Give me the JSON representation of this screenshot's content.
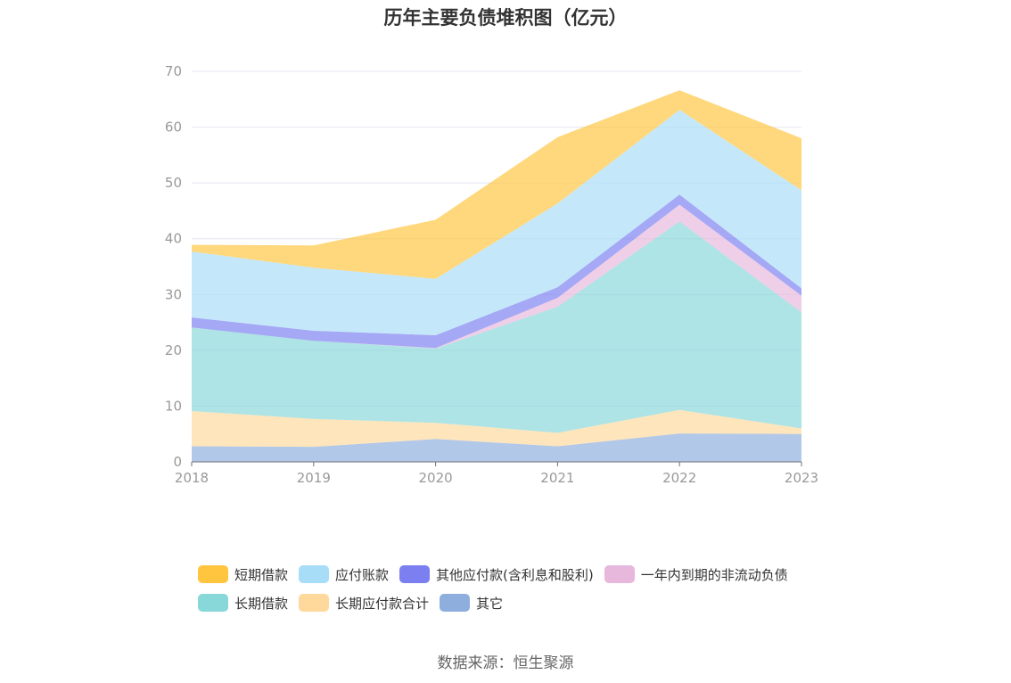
{
  "chart_data": {
    "type": "area",
    "stacked": true,
    "title": "历年主要负债堆积图（亿元）",
    "categories": [
      "2018",
      "2019",
      "2020",
      "2021",
      "2022",
      "2023"
    ],
    "ylim": [
      0,
      70
    ],
    "yticks": [
      0,
      10,
      20,
      30,
      40,
      50,
      60,
      70
    ],
    "grid": true,
    "legend_position": "bottom",
    "series": [
      {
        "name": "其它",
        "color": "#8eaedd",
        "values": [
          2.8,
          2.7,
          4.1,
          2.8,
          5.1,
          5.0
        ]
      },
      {
        "name": "长期应付款合计",
        "color": "#ffd89b",
        "values": [
          6.3,
          5.0,
          2.9,
          2.4,
          4.2,
          1.0
        ]
      },
      {
        "name": "长期借款",
        "color": "#88d7d9",
        "values": [
          15.0,
          14.0,
          13.3,
          22.6,
          33.8,
          20.8
        ]
      },
      {
        "name": "一年内到期的非流动负债",
        "color": "#e7b7dc",
        "values": [
          0.0,
          0.0,
          0.1,
          1.6,
          3.0,
          3.0
        ]
      },
      {
        "name": "其他应付款(含利息和股利)",
        "color": "#7b7ff0",
        "values": [
          1.8,
          1.8,
          2.3,
          1.9,
          1.8,
          1.3
        ]
      },
      {
        "name": "应付账款",
        "color": "#a8ddf8",
        "values": [
          11.8,
          11.3,
          10.1,
          15.0,
          15.2,
          17.6
        ]
      },
      {
        "name": "短期借款",
        "color": "#ffc53f",
        "values": [
          1.2,
          4.0,
          10.6,
          11.9,
          3.5,
          9.3
        ]
      }
    ]
  },
  "legend": {
    "row1": [
      "短期借款",
      "应付账款",
      "其他应付款(含利息和股利)",
      "一年内到期的非流动负债"
    ],
    "row2": [
      "长期借款",
      "长期应付款合计",
      "其它"
    ]
  },
  "colors": {
    "短期借款": "#ffc53f",
    "应付账款": "#a8ddf8",
    "其他应付款(含利息和股利)": "#7b7ff0",
    "一年内到期的非流动负债": "#e7b7dc",
    "长期借款": "#88d7d9",
    "长期应付款合计": "#ffd89b",
    "其它": "#8eaedd"
  },
  "source": "数据来源：恒生聚源"
}
